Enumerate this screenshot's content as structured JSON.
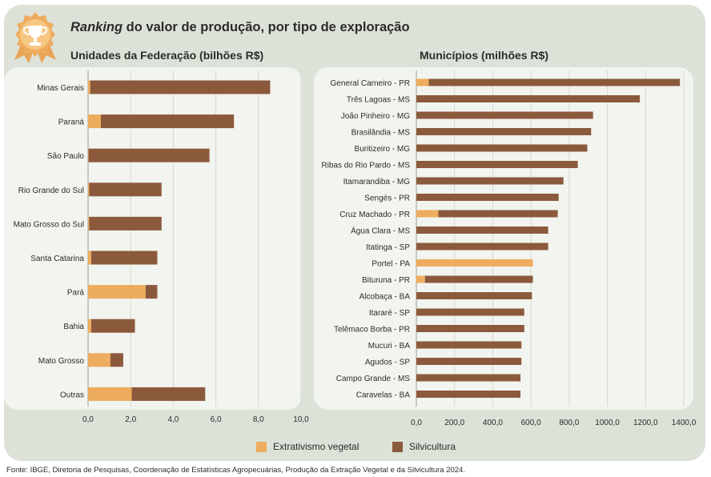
{
  "title": {
    "emphasis": "Ranking",
    "rest": " do valor de produção, por tipo de exploração"
  },
  "colors": {
    "extrativismo": "#eeac5e",
    "silvicultura": "#8b5a3c",
    "frame": "#dde2d8",
    "panel": "#f2f4ef",
    "grid": "#d5d8cf",
    "text": "#2b2b2b"
  },
  "legend": {
    "extrativismo": "Extrativismo vegetal",
    "silvicultura": "Silvicultura"
  },
  "source": "Fonte: IBGE, Diretoria de Pesquisas, Coordenação de Estatísticas Agropecuárias, Produção da Extração Vegetal e da Silvicultura 2024.",
  "chart_data": [
    {
      "type": "bar",
      "orientation": "horizontal",
      "stacked": true,
      "title": "Unidades da Federação (bilhões R$)",
      "categories": [
        "Minas Gerais",
        "Paraná",
        "São Paulo",
        "Rio Grande do Sul",
        "Mato Grosso do Sul",
        "Santa Catarina",
        "Pará",
        "Bahia",
        "Mato Grosso",
        "Outras"
      ],
      "series": [
        {
          "name": "Extrativismo vegetal",
          "values": [
            0.1,
            0.6,
            0.02,
            0.05,
            0.05,
            0.15,
            2.7,
            0.15,
            1.05,
            2.05
          ]
        },
        {
          "name": "Silvicultura",
          "values": [
            8.45,
            6.25,
            5.68,
            3.4,
            3.4,
            3.1,
            0.55,
            2.05,
            0.6,
            3.45
          ]
        }
      ],
      "xlim": [
        0,
        10
      ],
      "xticks": [
        "0,0",
        "2,0",
        "4,0",
        "6,0",
        "8,0",
        "10,0"
      ],
      "grid": true
    },
    {
      "type": "bar",
      "orientation": "horizontal",
      "stacked": true,
      "title": "Municípios (milhões R$)",
      "categories": [
        "General Carneiro - PR",
        "Três Lagoas - MS",
        "João Pinheiro - MG",
        "Brasilândia - MS",
        "Buritizeiro - MG",
        "Ribas do Rio Pardo - MS",
        "Itamarandiba - MG",
        "Sengés - PR",
        "Cruz Machado - PR",
        "Água Clara - MS",
        "Itatinga - SP",
        "Portel - PA",
        "Bituruna - PR",
        "Alcobaça - BA",
        "Itararé - SP",
        "Telêmaco Borba - PR",
        "Mucuri - BA",
        "Agudos - SP",
        "Campo Grande - MS",
        "Caravelas - BA"
      ],
      "series": [
        {
          "name": "Extrativismo vegetal",
          "values": [
            65,
            0,
            0,
            0,
            0,
            0,
            0,
            0,
            115,
            0,
            0,
            610,
            45,
            0,
            0,
            0,
            0,
            0,
            0,
            0
          ]
        },
        {
          "name": "Silvicultura",
          "values": [
            1315,
            1170,
            925,
            915,
            895,
            845,
            770,
            745,
            625,
            690,
            690,
            0,
            565,
            605,
            565,
            565,
            550,
            550,
            545,
            545
          ]
        }
      ],
      "xlim": [
        0,
        1400
      ],
      "xticks": [
        "0,0",
        "200,0",
        "400,0",
        "600,0",
        "800,0",
        "1000,0",
        "1200,0",
        "1400,0"
      ],
      "grid": true
    }
  ]
}
